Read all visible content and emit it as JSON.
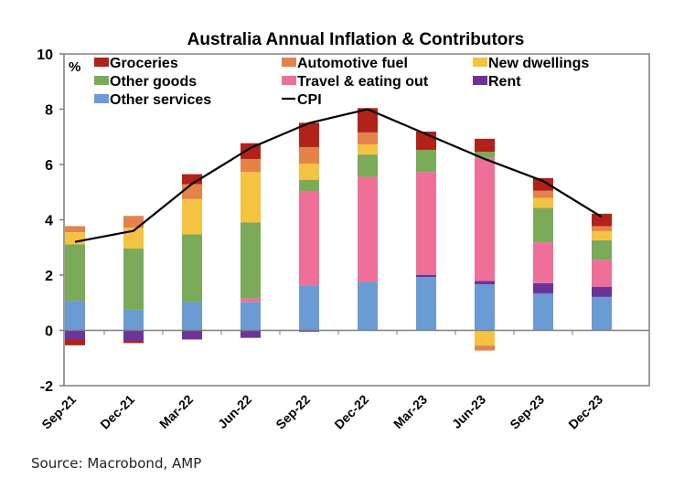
{
  "chart_data": {
    "type": "bar",
    "stacked": true,
    "title": "Australia Annual Inflation & Contributors",
    "ylabel": "%",
    "xlabel": "",
    "ylim": [
      -2,
      10
    ],
    "yticks": [
      -2,
      0,
      2,
      4,
      6,
      8,
      10
    ],
    "grid": false,
    "legend_position": "top-left",
    "categories": [
      "Sep-21",
      "Dec-21",
      "Mar-22",
      "Jun-22",
      "Sep-22",
      "Dec-22",
      "Mar-23",
      "Jun-23",
      "Sep-23",
      "Dec-23"
    ],
    "series": [
      {
        "name": "Other services",
        "color": "#6a9bd3",
        "values": [
          1.07,
          0.75,
          1.02,
          1.03,
          1.63,
          1.75,
          1.93,
          1.67,
          1.34,
          1.21
        ]
      },
      {
        "name": "Rent",
        "color": "#6b3499",
        "values": [
          -0.33,
          -0.38,
          -0.33,
          -0.27,
          -0.05,
          0.0,
          0.08,
          0.12,
          0.37,
          0.36
        ]
      },
      {
        "name": "Travel & eating out",
        "color": "#ee7099",
        "values": [
          0.0,
          0.0,
          0.0,
          0.13,
          3.41,
          3.8,
          3.72,
          4.45,
          1.47,
          0.98
        ]
      },
      {
        "name": "Other goods",
        "color": "#7baa58",
        "values": [
          2.04,
          2.21,
          2.46,
          2.74,
          0.41,
          0.81,
          0.8,
          0.22,
          1.25,
          0.71
        ]
      },
      {
        "name": "New dwellings",
        "color": "#f5c342",
        "values": [
          0.44,
          0.75,
          1.27,
          1.83,
          0.58,
          0.37,
          0.0,
          -0.55,
          0.36,
          0.33
        ]
      },
      {
        "name": "Automotive fuel",
        "color": "#e3834a",
        "values": [
          0.22,
          0.43,
          0.54,
          0.47,
          0.6,
          0.43,
          0.0,
          -0.18,
          0.26,
          0.18
        ]
      },
      {
        "name": "Groceries",
        "color": "#b12218",
        "values": [
          -0.21,
          -0.08,
          0.36,
          0.57,
          0.88,
          0.88,
          0.66,
          0.47,
          0.46,
          0.45
        ]
      }
    ],
    "line_series": {
      "name": "CPI",
      "color": "#000000",
      "values": [
        3.2,
        3.6,
        5.3,
        6.6,
        7.5,
        8.0,
        7.1,
        6.2,
        5.4,
        4.1
      ]
    },
    "legend": [
      {
        "label": "Groceries",
        "type": "box",
        "color": "#b12218"
      },
      {
        "label": "Automotive fuel",
        "type": "box",
        "color": "#e3834a"
      },
      {
        "label": "New dwellings",
        "type": "box",
        "color": "#f5c342"
      },
      {
        "label": "Other goods",
        "type": "box",
        "color": "#7baa58"
      },
      {
        "label": "Travel & eating out",
        "type": "box",
        "color": "#ee7099"
      },
      {
        "label": "Rent",
        "type": "box",
        "color": "#6b3499"
      },
      {
        "label": "Other services",
        "type": "box",
        "color": "#6a9bd3"
      },
      {
        "label": "CPI",
        "type": "line",
        "color": "#000000"
      }
    ]
  },
  "footer": {
    "source": "Source: Macrobond, AMP"
  }
}
